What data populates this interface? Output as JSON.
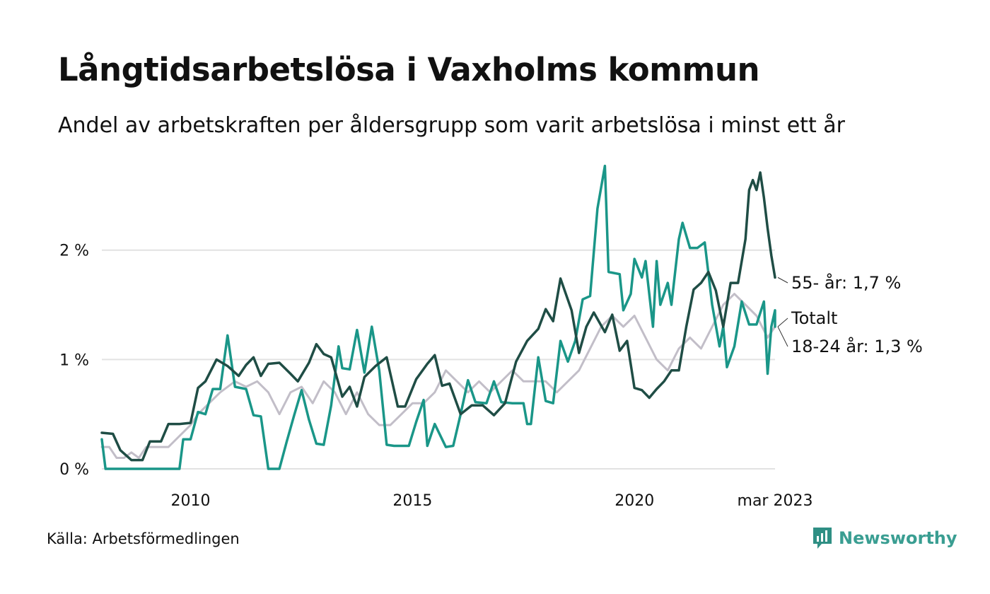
{
  "header": {
    "title": "Långtidsarbetslösa i Vaxholms kommun",
    "subtitle": "Andel av arbetskraften per åldersgrupp som varit arbetslösa i minst ett år"
  },
  "footer": {
    "source": "Källa: Arbetsförmedlingen",
    "brand": "Newsworthy",
    "brand_color": "#2f8f84"
  },
  "chart_data": {
    "type": "line",
    "xlim": [
      "2008-01",
      "2023-03"
    ],
    "ylim": [
      0,
      2.8
    ],
    "grid": true,
    "x_ticks": [
      {
        "x": "2010-01",
        "label": "2010"
      },
      {
        "x": "2015-01",
        "label": "2015"
      },
      {
        "x": "2020-01",
        "label": "2020"
      },
      {
        "x": "2023-03",
        "label": "mar 2023"
      }
    ],
    "y_ticks": [
      {
        "y": 0,
        "label": "0 %"
      },
      {
        "y": 1,
        "label": "1 %"
      },
      {
        "y": 2,
        "label": "2 %"
      }
    ],
    "series": [
      {
        "name": "Totalt",
        "end_label": "Totalt",
        "color": "#c2bec8",
        "points": [
          [
            "2008-01",
            0.2
          ],
          [
            "2008-03",
            0.2
          ],
          [
            "2008-05",
            0.1
          ],
          [
            "2008-07",
            0.1
          ],
          [
            "2008-09",
            0.15
          ],
          [
            "2008-11",
            0.1
          ],
          [
            "2009-01",
            0.2
          ],
          [
            "2009-04",
            0.2
          ],
          [
            "2009-07",
            0.2
          ],
          [
            "2009-10",
            0.3
          ],
          [
            "2010-01",
            0.4
          ],
          [
            "2010-03",
            0.5
          ],
          [
            "2010-06",
            0.6
          ],
          [
            "2010-09",
            0.7
          ],
          [
            "2011-01",
            0.8
          ],
          [
            "2011-04",
            0.75
          ],
          [
            "2011-07",
            0.8
          ],
          [
            "2011-10",
            0.7
          ],
          [
            "2012-01",
            0.5
          ],
          [
            "2012-04",
            0.7
          ],
          [
            "2012-07",
            0.75
          ],
          [
            "2012-10",
            0.6
          ],
          [
            "2013-01",
            0.8
          ],
          [
            "2013-04",
            0.7
          ],
          [
            "2013-07",
            0.5
          ],
          [
            "2013-10",
            0.7
          ],
          [
            "2014-01",
            0.5
          ],
          [
            "2014-04",
            0.4
          ],
          [
            "2014-07",
            0.4
          ],
          [
            "2014-10",
            0.5
          ],
          [
            "2015-01",
            0.6
          ],
          [
            "2015-04",
            0.6
          ],
          [
            "2015-07",
            0.7
          ],
          [
            "2015-10",
            0.9
          ],
          [
            "2016-01",
            0.8
          ],
          [
            "2016-04",
            0.7
          ],
          [
            "2016-07",
            0.8
          ],
          [
            "2016-10",
            0.7
          ],
          [
            "2017-01",
            0.8
          ],
          [
            "2017-04",
            0.9
          ],
          [
            "2017-07",
            0.8
          ],
          [
            "2017-10",
            0.8
          ],
          [
            "2018-01",
            0.8
          ],
          [
            "2018-04",
            0.7
          ],
          [
            "2018-07",
            0.8
          ],
          [
            "2018-10",
            0.9
          ],
          [
            "2019-01",
            1.1
          ],
          [
            "2019-04",
            1.3
          ],
          [
            "2019-07",
            1.4
          ],
          [
            "2019-10",
            1.3
          ],
          [
            "2020-01",
            1.4
          ],
          [
            "2020-04",
            1.2
          ],
          [
            "2020-07",
            1.0
          ],
          [
            "2020-10",
            0.9
          ],
          [
            "2021-01",
            1.1
          ],
          [
            "2021-04",
            1.2
          ],
          [
            "2021-07",
            1.1
          ],
          [
            "2021-10",
            1.3
          ],
          [
            "2022-01",
            1.5
          ],
          [
            "2022-04",
            1.6
          ],
          [
            "2022-07",
            1.5
          ],
          [
            "2022-10",
            1.4
          ],
          [
            "2023-01",
            1.2
          ],
          [
            "2023-03",
            1.3
          ]
        ]
      },
      {
        "name": "18-24 år",
        "end_label": "18-24 år: 1,3 %",
        "color": "#1a9688",
        "points": [
          [
            "2008-01",
            0.27
          ],
          [
            "2008-02",
            0.0
          ],
          [
            "2008-06",
            0.0
          ],
          [
            "2009-01",
            0.0
          ],
          [
            "2009-06",
            0.0
          ],
          [
            "2009-10",
            0.0
          ],
          [
            "2009-11",
            0.27
          ],
          [
            "2010-01",
            0.27
          ],
          [
            "2010-03",
            0.52
          ],
          [
            "2010-05",
            0.5
          ],
          [
            "2010-07",
            0.73
          ],
          [
            "2010-09",
            0.73
          ],
          [
            "2010-11",
            1.22
          ],
          [
            "2011-01",
            0.75
          ],
          [
            "2011-04",
            0.73
          ],
          [
            "2011-06",
            0.49
          ],
          [
            "2011-08",
            0.48
          ],
          [
            "2011-10",
            0.0
          ],
          [
            "2012-01",
            0.0
          ],
          [
            "2012-03",
            0.25
          ],
          [
            "2012-05",
            0.49
          ],
          [
            "2012-07",
            0.72
          ],
          [
            "2012-09",
            0.45
          ],
          [
            "2012-11",
            0.23
          ],
          [
            "2013-01",
            0.22
          ],
          [
            "2013-03",
            0.58
          ],
          [
            "2013-05",
            1.12
          ],
          [
            "2013-06",
            0.92
          ],
          [
            "2013-08",
            0.91
          ],
          [
            "2013-10",
            1.27
          ],
          [
            "2013-12",
            0.88
          ],
          [
            "2014-02",
            1.3
          ],
          [
            "2014-04",
            0.9
          ],
          [
            "2014-06",
            0.22
          ],
          [
            "2014-08",
            0.21
          ],
          [
            "2014-10",
            0.21
          ],
          [
            "2014-12",
            0.21
          ],
          [
            "2015-02",
            0.43
          ],
          [
            "2015-04",
            0.63
          ],
          [
            "2015-05",
            0.21
          ],
          [
            "2015-07",
            0.41
          ],
          [
            "2015-10",
            0.2
          ],
          [
            "2015-12",
            0.21
          ],
          [
            "2016-02",
            0.5
          ],
          [
            "2016-04",
            0.81
          ],
          [
            "2016-06",
            0.61
          ],
          [
            "2016-09",
            0.6
          ],
          [
            "2016-11",
            0.8
          ],
          [
            "2017-01",
            0.61
          ],
          [
            "2017-04",
            0.6
          ],
          [
            "2017-07",
            0.6
          ],
          [
            "2017-08",
            0.41
          ],
          [
            "2017-09",
            0.41
          ],
          [
            "2017-11",
            1.02
          ],
          [
            "2018-01",
            0.62
          ],
          [
            "2018-03",
            0.6
          ],
          [
            "2018-05",
            1.17
          ],
          [
            "2018-07",
            0.98
          ],
          [
            "2018-09",
            1.17
          ],
          [
            "2018-11",
            1.55
          ],
          [
            "2019-01",
            1.58
          ],
          [
            "2019-03",
            2.38
          ],
          [
            "2019-05",
            2.77
          ],
          [
            "2019-06",
            1.8
          ],
          [
            "2019-09",
            1.78
          ],
          [
            "2019-10",
            1.45
          ],
          [
            "2019-12",
            1.6
          ],
          [
            "2020-01",
            1.92
          ],
          [
            "2020-03",
            1.75
          ],
          [
            "2020-04",
            1.9
          ],
          [
            "2020-06",
            1.3
          ],
          [
            "2020-07",
            1.9
          ],
          [
            "2020-08",
            1.5
          ],
          [
            "2020-10",
            1.7
          ],
          [
            "2020-11",
            1.5
          ],
          [
            "2021-01",
            2.1
          ],
          [
            "2021-02",
            2.25
          ],
          [
            "2021-04",
            2.02
          ],
          [
            "2021-06",
            2.02
          ],
          [
            "2021-08",
            2.07
          ],
          [
            "2021-10",
            1.5
          ],
          [
            "2021-12",
            1.12
          ],
          [
            "2022-01",
            1.3
          ],
          [
            "2022-02",
            0.93
          ],
          [
            "2022-04",
            1.12
          ],
          [
            "2022-06",
            1.53
          ],
          [
            "2022-08",
            1.32
          ],
          [
            "2022-10",
            1.32
          ],
          [
            "2022-12",
            1.53
          ],
          [
            "2023-01",
            0.87
          ],
          [
            "2023-02",
            1.3
          ],
          [
            "2023-03",
            1.45
          ],
          [
            "2023-03",
            1.3
          ]
        ]
      },
      {
        "name": "55- år",
        "end_label": "55- år: 1,7 %",
        "color": "#1f4d45",
        "points": [
          [
            "2008-01",
            0.33
          ],
          [
            "2008-04",
            0.32
          ],
          [
            "2008-06",
            0.17
          ],
          [
            "2008-09",
            0.08
          ],
          [
            "2008-12",
            0.08
          ],
          [
            "2009-02",
            0.25
          ],
          [
            "2009-05",
            0.25
          ],
          [
            "2009-07",
            0.41
          ],
          [
            "2009-10",
            0.41
          ],
          [
            "2010-01",
            0.42
          ],
          [
            "2010-03",
            0.74
          ],
          [
            "2010-05",
            0.8
          ],
          [
            "2010-08",
            1.0
          ],
          [
            "2010-11",
            0.94
          ],
          [
            "2011-02",
            0.85
          ],
          [
            "2011-04",
            0.95
          ],
          [
            "2011-06",
            1.02
          ],
          [
            "2011-08",
            0.85
          ],
          [
            "2011-10",
            0.96
          ],
          [
            "2012-01",
            0.97
          ],
          [
            "2012-04",
            0.87
          ],
          [
            "2012-06",
            0.8
          ],
          [
            "2012-09",
            0.97
          ],
          [
            "2012-11",
            1.14
          ],
          [
            "2013-01",
            1.05
          ],
          [
            "2013-03",
            1.02
          ],
          [
            "2013-06",
            0.66
          ],
          [
            "2013-08",
            0.75
          ],
          [
            "2013-10",
            0.57
          ],
          [
            "2013-12",
            0.84
          ],
          [
            "2014-03",
            0.94
          ],
          [
            "2014-06",
            1.02
          ],
          [
            "2014-09",
            0.57
          ],
          [
            "2014-11",
            0.57
          ],
          [
            "2015-02",
            0.82
          ],
          [
            "2015-05",
            0.96
          ],
          [
            "2015-07",
            1.04
          ],
          [
            "2015-09",
            0.76
          ],
          [
            "2015-11",
            0.78
          ],
          [
            "2016-02",
            0.5
          ],
          [
            "2016-05",
            0.58
          ],
          [
            "2016-08",
            0.58
          ],
          [
            "2016-11",
            0.49
          ],
          [
            "2017-02",
            0.6
          ],
          [
            "2017-05",
            0.98
          ],
          [
            "2017-08",
            1.17
          ],
          [
            "2017-11",
            1.28
          ],
          [
            "2018-01",
            1.46
          ],
          [
            "2018-03",
            1.35
          ],
          [
            "2018-05",
            1.74
          ],
          [
            "2018-08",
            1.45
          ],
          [
            "2018-10",
            1.06
          ],
          [
            "2018-12",
            1.3
          ],
          [
            "2019-02",
            1.43
          ],
          [
            "2019-05",
            1.25
          ],
          [
            "2019-07",
            1.41
          ],
          [
            "2019-09",
            1.08
          ],
          [
            "2019-11",
            1.17
          ],
          [
            "2020-01",
            0.74
          ],
          [
            "2020-03",
            0.72
          ],
          [
            "2020-05",
            0.65
          ],
          [
            "2020-07",
            0.73
          ],
          [
            "2020-09",
            0.8
          ],
          [
            "2020-11",
            0.9
          ],
          [
            "2021-01",
            0.9
          ],
          [
            "2021-03",
            1.3
          ],
          [
            "2021-05",
            1.64
          ],
          [
            "2021-07",
            1.7
          ],
          [
            "2021-09",
            1.8
          ],
          [
            "2021-11",
            1.63
          ],
          [
            "2022-01",
            1.3
          ],
          [
            "2022-03",
            1.7
          ],
          [
            "2022-05",
            1.7
          ],
          [
            "2022-07",
            2.1
          ],
          [
            "2022-08",
            2.55
          ],
          [
            "2022-09",
            2.64
          ],
          [
            "2022-10",
            2.55
          ],
          [
            "2022-11",
            2.71
          ],
          [
            "2022-12",
            2.48
          ],
          [
            "2023-01",
            2.2
          ],
          [
            "2023-02",
            1.95
          ],
          [
            "2023-03",
            1.75
          ]
        ]
      }
    ]
  }
}
